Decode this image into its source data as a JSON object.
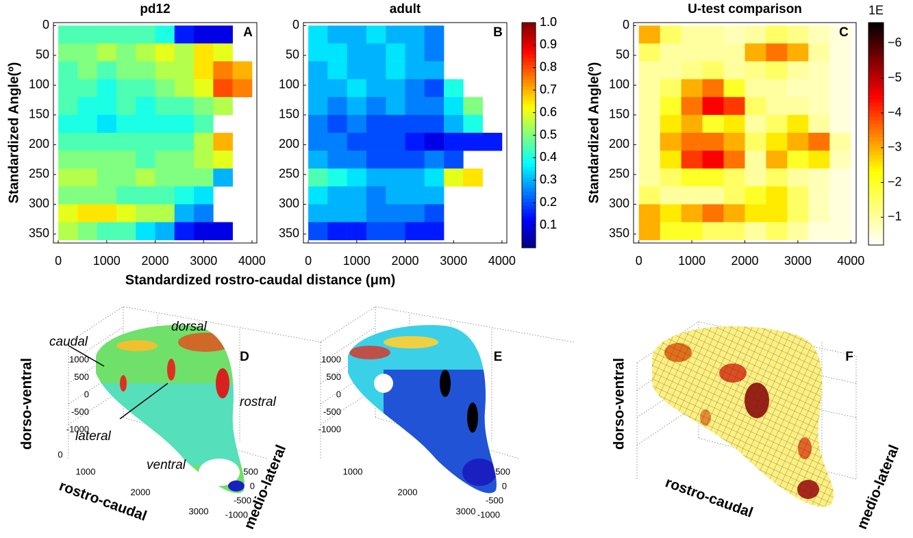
{
  "chart_data": [
    {
      "type": "heatmap",
      "panel": "A",
      "title": "pd12",
      "ylabel": "Standardized Angle(º)",
      "xlabel": "Standardized rostro-caudal distance (μm)",
      "xlim": [
        -100,
        4100
      ],
      "ylim": [
        -5,
        365
      ],
      "yreverse": true,
      "xticks": [
        0,
        1000,
        2000,
        3000,
        4000
      ],
      "yticks": [
        0,
        50,
        100,
        150,
        200,
        250,
        300,
        350
      ],
      "x": [
        200,
        600,
        1000,
        1400,
        1800,
        2200,
        2600,
        3000,
        3400,
        3800
      ],
      "y": [
        15,
        45,
        75,
        105,
        135,
        165,
        195,
        225,
        255,
        285,
        315,
        345
      ],
      "values": [
        [
          0.45,
          0.45,
          0.45,
          0.45,
          0.45,
          0.4,
          0.15,
          0.1,
          0.1,
          null
        ],
        [
          0.5,
          0.5,
          0.55,
          0.5,
          0.55,
          0.6,
          0.55,
          0.65,
          0.6,
          null
        ],
        [
          0.45,
          0.5,
          0.45,
          0.5,
          0.5,
          0.55,
          0.55,
          0.65,
          0.75,
          0.7
        ],
        [
          0.45,
          0.45,
          0.4,
          0.45,
          0.45,
          0.5,
          0.55,
          0.6,
          0.8,
          0.75
        ],
        [
          0.45,
          0.4,
          0.4,
          0.45,
          0.4,
          0.45,
          0.45,
          0.5,
          0.55,
          null
        ],
        [
          0.4,
          0.4,
          0.35,
          0.4,
          0.4,
          0.4,
          0.4,
          0.45,
          null,
          null
        ],
        [
          0.45,
          0.45,
          0.45,
          0.45,
          0.45,
          0.45,
          0.45,
          0.55,
          0.7,
          null
        ],
        [
          0.5,
          0.5,
          0.5,
          0.5,
          0.45,
          0.5,
          0.5,
          0.55,
          0.6,
          null
        ],
        [
          0.55,
          0.55,
          0.5,
          0.5,
          0.55,
          0.5,
          0.5,
          0.5,
          0.3,
          null
        ],
        [
          0.5,
          0.5,
          0.5,
          0.45,
          0.45,
          0.45,
          0.4,
          0.35,
          null,
          null
        ],
        [
          0.6,
          0.65,
          0.65,
          0.6,
          0.55,
          0.55,
          0.3,
          0.25,
          null,
          null
        ],
        [
          0.55,
          0.5,
          0.45,
          0.45,
          0.35,
          0.3,
          0.15,
          0.1,
          0.1,
          null
        ]
      ]
    },
    {
      "type": "heatmap",
      "panel": "B",
      "title": "adult",
      "xlim": [
        -100,
        4100
      ],
      "ylim": [
        -5,
        365
      ],
      "yreverse": true,
      "xticks": [
        0,
        1000,
        2000,
        3000,
        4000
      ],
      "yticks": [
        0,
        50,
        100,
        150,
        200,
        250,
        300,
        350
      ],
      "x": [
        200,
        600,
        1000,
        1400,
        1800,
        2200,
        2600,
        3000,
        3400,
        3800
      ],
      "y": [
        15,
        45,
        75,
        105,
        135,
        165,
        195,
        225,
        255,
        285,
        315,
        345
      ],
      "values": [
        [
          0.35,
          0.3,
          0.3,
          0.35,
          0.3,
          0.3,
          0.25,
          null,
          null,
          null
        ],
        [
          0.35,
          0.35,
          0.3,
          0.3,
          0.35,
          0.3,
          0.25,
          null,
          null,
          null
        ],
        [
          0.3,
          0.35,
          0.3,
          0.3,
          0.35,
          0.3,
          0.3,
          null,
          null,
          null
        ],
        [
          0.3,
          0.3,
          0.35,
          0.3,
          0.3,
          0.25,
          0.2,
          0.4,
          null,
          null
        ],
        [
          0.3,
          0.25,
          0.3,
          0.25,
          0.3,
          0.25,
          0.25,
          0.35,
          0.5,
          null
        ],
        [
          0.25,
          0.2,
          0.25,
          0.2,
          0.2,
          0.2,
          0.2,
          0.3,
          0.4,
          null
        ],
        [
          0.25,
          0.25,
          0.2,
          0.2,
          0.2,
          0.15,
          0.1,
          0.15,
          0.15,
          0.15
        ],
        [
          0.3,
          0.25,
          0.25,
          0.2,
          0.2,
          0.2,
          0.25,
          0.2,
          null,
          null
        ],
        [
          0.45,
          0.4,
          0.35,
          0.3,
          0.3,
          0.3,
          0.35,
          0.6,
          0.65,
          null
        ],
        [
          0.35,
          0.3,
          0.3,
          0.25,
          0.3,
          0.3,
          0.3,
          null,
          null,
          null
        ],
        [
          0.3,
          0.3,
          0.3,
          0.25,
          0.25,
          0.25,
          0.2,
          null,
          null,
          null
        ],
        [
          0.2,
          0.15,
          0.15,
          0.2,
          0.2,
          0.15,
          0.15,
          null,
          null,
          null
        ]
      ],
      "colorbar": {
        "colormap": "jet",
        "ylim": [
          0,
          1
        ],
        "yticks": [
          0.1,
          0.2,
          0.3,
          0.4,
          0.5,
          0.6,
          0.7,
          0.8,
          0.9,
          {
            "value": 1,
            "label": "1.0"
          }
        ]
      }
    },
    {
      "type": "heatmap",
      "panel": "C",
      "title": "U-test comparison",
      "ylabel": "Standardized Angle(º)",
      "xlim": [
        -100,
        4100
      ],
      "ylim": [
        -5,
        365
      ],
      "yreverse": true,
      "xticks": [
        0,
        1000,
        2000,
        3000,
        4000
      ],
      "yticks": [
        0,
        50,
        100,
        150,
        200,
        250,
        300,
        350
      ],
      "x": [
        200,
        600,
        1000,
        1400,
        1800,
        2200,
        2600,
        3000,
        3400,
        3800
      ],
      "y": [
        15,
        45,
        75,
        105,
        135,
        165,
        195,
        225,
        255,
        285,
        315,
        345
      ],
      "values": [
        [
          -3,
          -1.5,
          -1,
          -1,
          -0.8,
          -1,
          -1.5,
          -1.2,
          -0.8,
          -0.5
        ],
        [
          -1.5,
          -1,
          -1,
          -1,
          -1,
          -3,
          -3.5,
          -3,
          -1,
          -0.5
        ],
        [
          -1,
          -1,
          -1.2,
          -1.5,
          -1,
          -1.2,
          -1.5,
          -1,
          -0.8,
          -0.5
        ],
        [
          -1,
          -1.5,
          -3,
          -3.5,
          -2,
          -1,
          -1,
          -0.8,
          -0.8,
          -0.5
        ],
        [
          -1,
          -2,
          -3.5,
          -4.5,
          -4,
          -1.5,
          -1,
          -1,
          -0.8,
          -0.5
        ],
        [
          -1,
          -2.5,
          -3,
          -2,
          -2.5,
          -1,
          -1.5,
          -2.5,
          -1,
          -0.5
        ],
        [
          -1,
          -3,
          -3.5,
          -3.5,
          -3,
          -1.5,
          -2.5,
          -3,
          -3.5,
          -1
        ],
        [
          -1,
          -2.5,
          -4,
          -4.5,
          -3.5,
          -1,
          -3,
          -2,
          -2.5,
          -0.8
        ],
        [
          -1,
          -1.5,
          -2,
          -2,
          -1.5,
          -1,
          -1.5,
          -1,
          -0.8,
          -0.5
        ],
        [
          -1.5,
          -1,
          -1,
          -1,
          -1.5,
          -2,
          -2.5,
          -1.5,
          -0.8,
          -0.5
        ],
        [
          -3,
          -2.5,
          -3,
          -3.5,
          -3,
          -2.5,
          -2.5,
          -1.5,
          -0.8,
          -0.5
        ],
        [
          -3,
          -2,
          -2,
          -1.5,
          -1.5,
          -1,
          -1.5,
          -1,
          -0.5,
          -0.5
        ]
      ],
      "colorbar": {
        "colormap": "hot_r",
        "label": "1E",
        "ylim": [
          -6.6,
          -0.2
        ],
        "yreverse": true,
        "yticks": [
          {
            "value": -6,
            "label": "−6"
          },
          {
            "value": -5,
            "label": "−5"
          },
          {
            "value": -4,
            "label": "−4"
          },
          {
            "value": -3,
            "label": "−3"
          },
          {
            "value": -2,
            "label": "−2"
          },
          {
            "value": -1,
            "label": "−1"
          }
        ]
      }
    },
    {
      "type": "surface",
      "panel": "D",
      "zlabel": "dorso-ventral",
      "xlabel": "rostro-caudal",
      "ylabel": "medio-lateral",
      "zticks": [
        1000,
        500,
        0,
        -500,
        -1000
      ],
      "xticks": [
        0,
        1000,
        2000,
        3000
      ],
      "yticks": [
        500,
        0,
        -500,
        -1000
      ],
      "annotations": [
        "caudal",
        "dorsal",
        "rostral",
        "lateral",
        "ventral"
      ]
    },
    {
      "type": "surface",
      "panel": "E",
      "zticks": [
        1000,
        500,
        0,
        -500,
        -1000
      ],
      "xticks": [
        1000,
        2000,
        3000
      ],
      "yticks": [
        500,
        0,
        -500,
        -1000
      ]
    },
    {
      "type": "surface",
      "panel": "F",
      "zlabel": "dorso-ventral",
      "xlabel": "rostro-caudal",
      "ylabel": "medio-lateral"
    }
  ]
}
